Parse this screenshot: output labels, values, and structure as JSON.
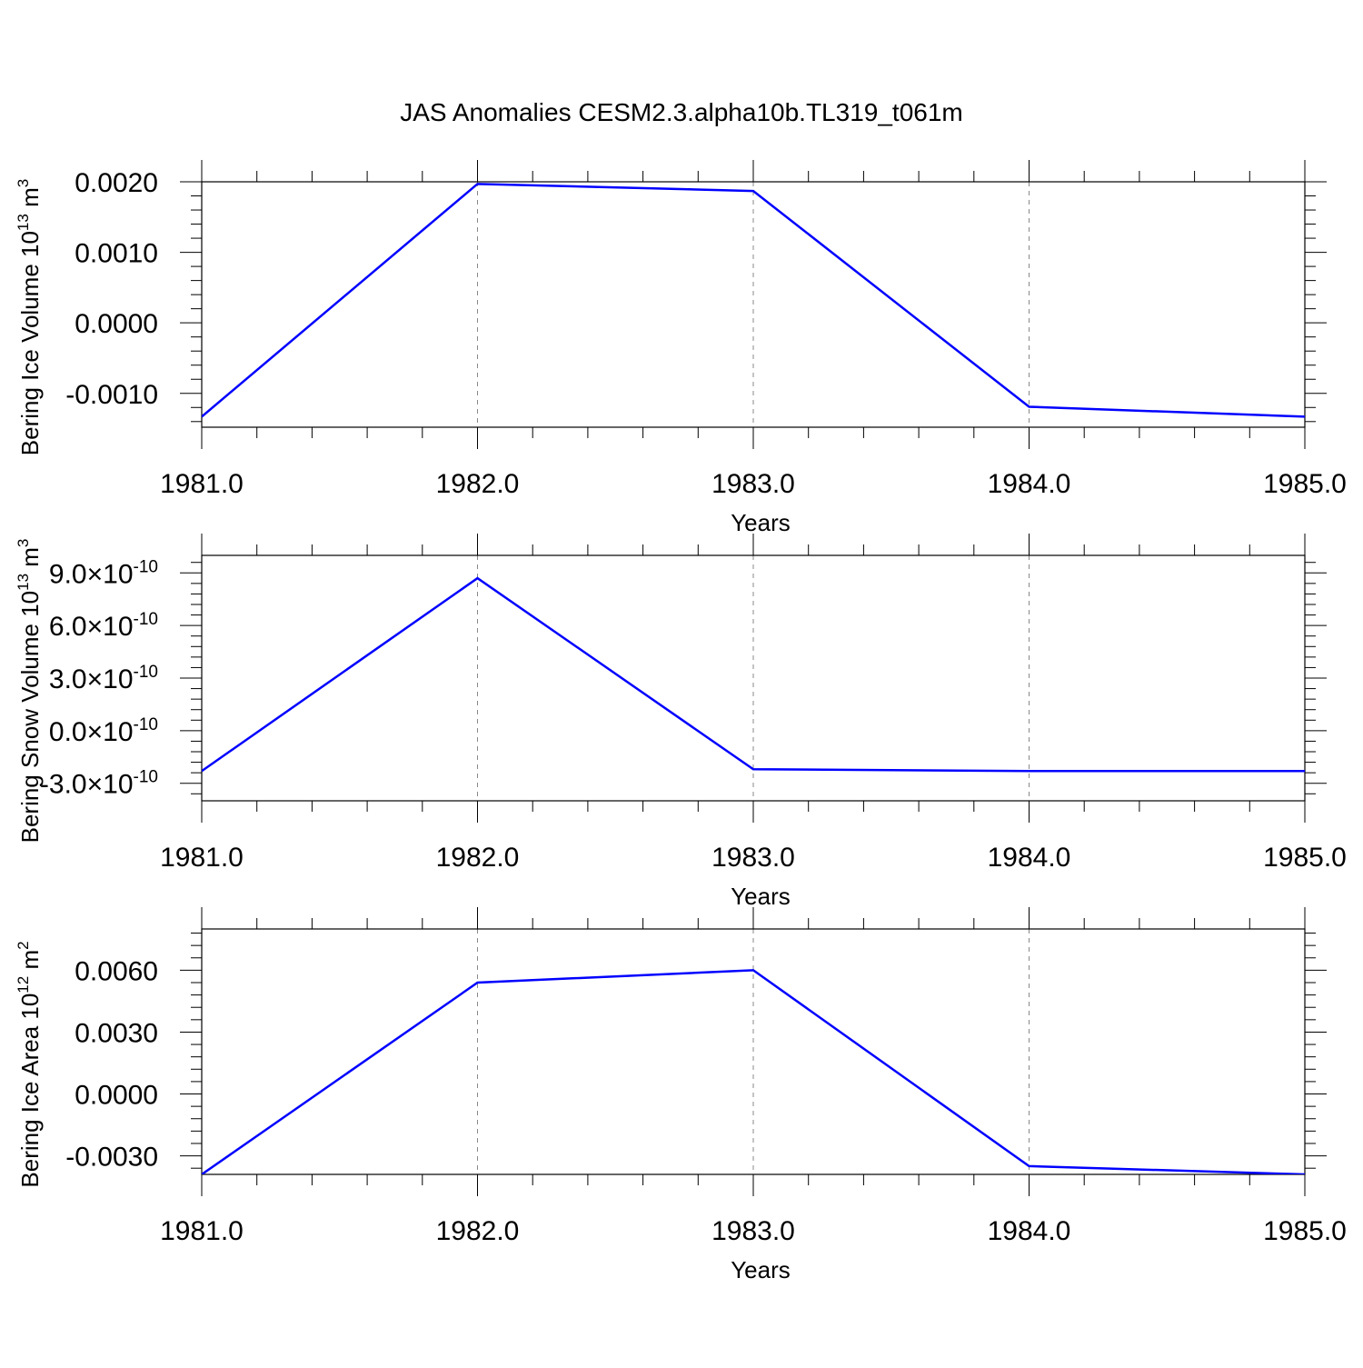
{
  "title": "JAS Anomalies CESM2.3.alpha10b.TL319_t061m",
  "line_color": "#0000ff",
  "chart_data": [
    {
      "type": "line",
      "xlabel": "Years",
      "ylabel": "Bering Ice Volume 10",
      "ylabel_exp": "13",
      "ylabel_unit": " m",
      "ylabel_unit_exp": "3",
      "x": [
        1981,
        1982,
        1983,
        1984,
        1985
      ],
      "values": [
        -0.00133,
        0.00197,
        0.00187,
        -0.00119,
        -0.00133
      ],
      "xlim": [
        1981,
        1985
      ],
      "ylim": [
        -0.00148,
        0.002
      ],
      "x_ticks": [
        "1981.0",
        "1982.0",
        "1983.0",
        "1984.0",
        "1985.0"
      ],
      "y_ticks": [
        {
          "v": 0.002,
          "label": "0.0020"
        },
        {
          "v": 0.001,
          "label": "0.0010"
        },
        {
          "v": 0.0,
          "label": "0.0000"
        },
        {
          "v": -0.001,
          "label": "-0.0010"
        }
      ],
      "grid": "vertical dashed at major x ticks"
    },
    {
      "type": "line",
      "xlabel": "Years",
      "ylabel": "Bering Snow Volume 10",
      "ylabel_exp": "13",
      "ylabel_unit": " m",
      "ylabel_unit_exp": "3",
      "x": [
        1981,
        1982,
        1983,
        1984,
        1985
      ],
      "values": [
        -2.3e-10,
        8.7e-10,
        -2.2e-10,
        -2.3e-10,
        -2.3e-10
      ],
      "xlim": [
        1981,
        1985
      ],
      "ylim": [
        -4e-10,
        1e-09
      ],
      "x_ticks": [
        "1981.0",
        "1982.0",
        "1983.0",
        "1984.0",
        "1985.0"
      ],
      "y_ticks": [
        {
          "v": 9e-10,
          "label": "9.0",
          "exp": "-10"
        },
        {
          "v": 6e-10,
          "label": "6.0",
          "exp": "-10"
        },
        {
          "v": 3e-10,
          "label": "3.0",
          "exp": "-10"
        },
        {
          "v": 0.0,
          "label": "0.0",
          "exp": "-10"
        },
        {
          "v": -3e-10,
          "label": "-3.0",
          "exp": "-10"
        }
      ],
      "grid": "vertical dashed at major x ticks"
    },
    {
      "type": "line",
      "xlabel": "Years",
      "ylabel": "Bering Ice Area 10",
      "ylabel_exp": "12",
      "ylabel_unit": " m",
      "ylabel_unit_exp": "2",
      "x": [
        1981,
        1982,
        1983,
        1984,
        1985
      ],
      "values": [
        -0.0039,
        0.0054,
        0.006,
        -0.0035,
        -0.0039
      ],
      "xlim": [
        1981,
        1985
      ],
      "ylim": [
        -0.0039,
        0.008
      ],
      "x_ticks": [
        "1981.0",
        "1982.0",
        "1983.0",
        "1984.0",
        "1985.0"
      ],
      "y_ticks": [
        {
          "v": 0.006,
          "label": "0.0060"
        },
        {
          "v": 0.003,
          "label": "0.0030"
        },
        {
          "v": 0.0,
          "label": "0.0000"
        },
        {
          "v": -0.003,
          "label": "-0.0030"
        }
      ],
      "grid": "vertical dashed at major x ticks"
    }
  ]
}
